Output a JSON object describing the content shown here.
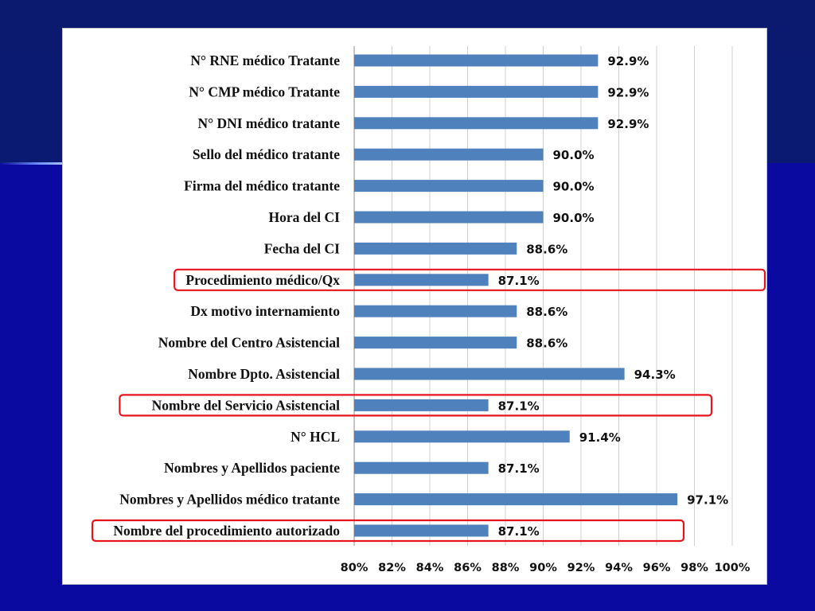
{
  "slide": {
    "background_top": "#0b1a6e",
    "background_bottom": "#0a0aa0"
  },
  "chart_data": {
    "type": "bar",
    "orientation": "horizontal",
    "bar_color": "#4f81bd",
    "highlight_color": "#e8141c",
    "categories": [
      "N° RNE médico Tratante",
      "N° CMP médico Tratante",
      "N° DNI médico tratante",
      "Sello del médico tratante",
      "Firma del médico tratante",
      "Hora del CI",
      "Fecha del CI",
      "Procedimiento médico/Qx",
      "Dx motivo internamiento",
      "Nombre del Centro Asistencial",
      "Nombre Dpto. Asistencial",
      "Nombre del Servicio Asistencial",
      "N° HCL",
      "Nombres y Apellidos paciente",
      "Nombres y Apellidos médico tratante",
      "Nombre del procedimiento autorizado"
    ],
    "values": [
      92.9,
      92.9,
      92.9,
      90.0,
      90.0,
      90.0,
      88.6,
      87.1,
      88.6,
      88.6,
      94.3,
      87.1,
      91.4,
      87.1,
      97.1,
      87.1
    ],
    "value_labels": [
      "92.9%",
      "92.9%",
      "92.9%",
      "90.0%",
      "90.0%",
      "90.0%",
      "88.6%",
      "87.1%",
      "88.6%",
      "88.6%",
      "94.3%",
      "87.1%",
      "91.4%",
      "87.1%",
      "97.1%",
      "87.1%"
    ],
    "highlighted": [
      "Procedimiento médico/Qx",
      "Nombre del Servicio Asistencial",
      "Nombre del procedimiento autorizado"
    ],
    "xlim": [
      80,
      100
    ],
    "x_ticks": [
      80,
      82,
      84,
      86,
      88,
      90,
      92,
      94,
      96,
      98,
      100
    ],
    "x_tick_labels": [
      "80%",
      "82%",
      "84%",
      "86%",
      "88%",
      "90%",
      "92%",
      "94%",
      "96%",
      "98%",
      "100%"
    ],
    "grid": true,
    "legend": "none",
    "title": "",
    "xlabel": "",
    "ylabel": ""
  }
}
